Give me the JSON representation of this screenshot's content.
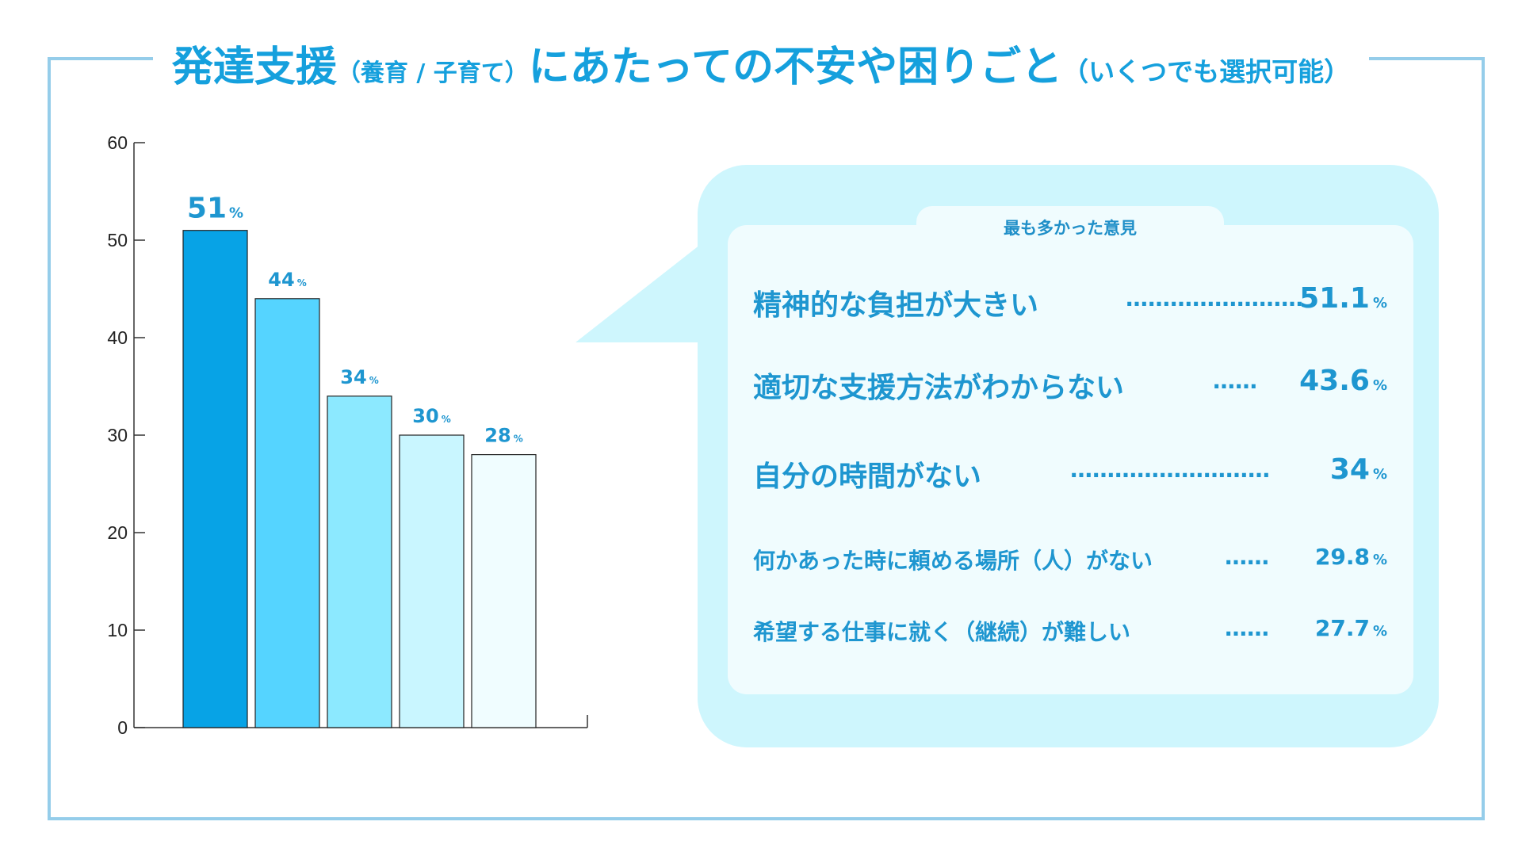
{
  "title": {
    "main1": "発達支援",
    "paren": "（養育 / 子育て）",
    "main2": "にあたっての不安や困りごと",
    "note": "（いくつでも選択可能）"
  },
  "colors": {
    "frame": "#95cdea",
    "title": "#15a0dd",
    "bubble": "#cef6fd",
    "inner": "#f0fcfe",
    "bar_colors": [
      "#07a3e6",
      "#55d4ff",
      "#8ce9ff",
      "#c9f6ff",
      "#f0fdff"
    ]
  },
  "chart_data": {
    "type": "bar",
    "categories": [
      "",
      "",
      "",
      "",
      ""
    ],
    "values": [
      51,
      44,
      34,
      30,
      28
    ],
    "data_labels": [
      "51",
      "44",
      "34",
      "30",
      "28"
    ],
    "data_label_unit": "%",
    "ylim": [
      0,
      60
    ],
    "yticks": [
      0,
      10,
      20,
      30,
      40,
      50,
      60
    ],
    "grid": false,
    "title": "",
    "xlabel": "",
    "ylabel": ""
  },
  "callout": {
    "tab_label": "最も多かった意見",
    "unit": "%",
    "items": [
      {
        "label": "精神的な負担が大きい",
        "dots": "……………………",
        "value": "51.1"
      },
      {
        "label": "適切な支援方法がわからない",
        "dots": "……",
        "value": "43.6"
      },
      {
        "label": "自分の時間がない",
        "dots": "………………………",
        "value": "34"
      },
      {
        "label": "何かあった時に頼める場所（人）がない",
        "dots": "……",
        "value": "29.8"
      },
      {
        "label": "希望する仕事に就く（継続）が難しい",
        "dots": "……",
        "value": "27.7"
      }
    ]
  }
}
